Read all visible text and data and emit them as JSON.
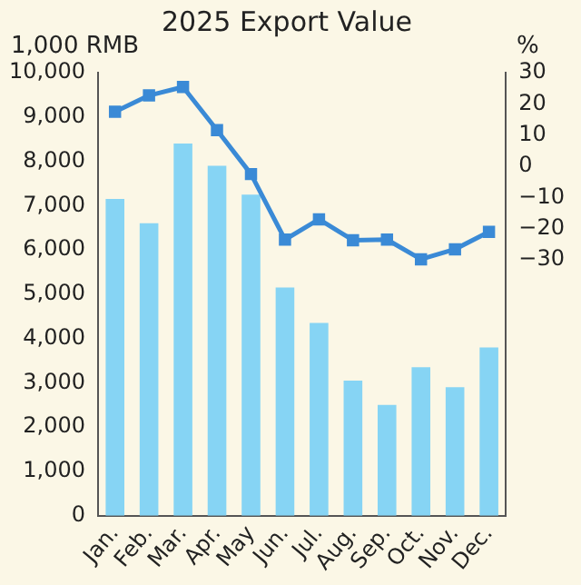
{
  "chart_data": {
    "type": "bar",
    "title": "2025 Export Value",
    "ylabel": "1,000 RMB",
    "y2label": "%",
    "categories": [
      "Jan.",
      "Feb.",
      "Mar.",
      "Apr.",
      "May",
      "Jun.",
      "Jul.",
      "Aug.",
      "Sep.",
      "Oct.",
      "Nov.",
      "Dec."
    ],
    "series": [
      {
        "color": "#86d4f4",
        "values": [
          7150,
          6600,
          8400,
          7900,
          7250,
          5150,
          4350,
          3050,
          2500,
          3350,
          2900,
          3800
        ]
      },
      {
        "type": "line",
        "axis": "y2",
        "color": "#3a8ad6",
        "values": [
          17.5,
          22.7,
          25.4,
          11.6,
          -2.5,
          -23.5,
          -17,
          -23.7,
          -23.5,
          -29.8,
          -26.6,
          -21
        ]
      }
    ],
    "ylim": [
      0,
      10000
    ],
    "yticks": [
      {
        "value": 0,
        "label": "0"
      },
      {
        "value": 1000,
        "label": "1,000"
      },
      {
        "value": 2000,
        "label": "2,000"
      },
      {
        "value": 3000,
        "label": "3,000"
      },
      {
        "value": 4000,
        "label": "4,000"
      },
      {
        "value": 5000,
        "label": "5,000"
      },
      {
        "value": 6000,
        "label": "6,000"
      },
      {
        "value": 7000,
        "label": "7,000"
      },
      {
        "value": 8000,
        "label": "8,000"
      },
      {
        "value": 9000,
        "label": "9,000"
      },
      {
        "value": 10000,
        "label": "10,000"
      }
    ],
    "y2lim": [
      -112,
      30
    ],
    "y2ticks": [
      {
        "value": -30,
        "label": "−30"
      },
      {
        "value": -20,
        "label": "−20"
      },
      {
        "value": -10,
        "label": "−10"
      },
      0,
      10,
      20,
      30
    ],
    "marker": "square",
    "grid": false,
    "legend": false
  }
}
